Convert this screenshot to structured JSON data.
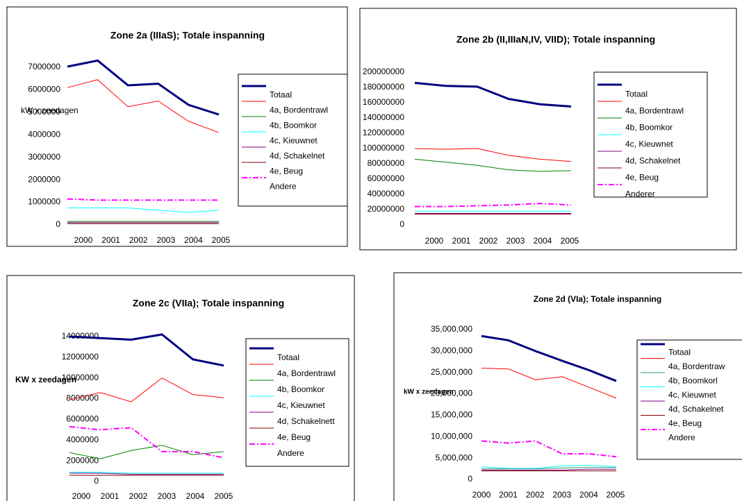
{
  "chart_data": [
    {
      "type": "line",
      "title": "Zone 2a (IIIaS); Totale inspanning",
      "ylabel": "kW x zeedagen",
      "categories": [
        "2000",
        "2001",
        "2002",
        "2003",
        "2004",
        "2005"
      ],
      "ylim": [
        0,
        7000000
      ],
      "yticks": [
        0,
        1000000,
        2000000,
        3000000,
        4000000,
        5000000,
        6000000,
        7000000
      ],
      "series": [
        {
          "name": "Totaal",
          "color": "#000080",
          "values": [
            7030000,
            7300000,
            6200000,
            6270000,
            5330000,
            4900000
          ]
        },
        {
          "name": "4a, Bordentrawl",
          "color": "#ff0000",
          "values": [
            6100000,
            6450000,
            5250000,
            5500000,
            4600000,
            4100000
          ]
        },
        {
          "name": "4b, Boomkor",
          "color": "#008000",
          "values": [
            150000,
            150000,
            150000,
            150000,
            150000,
            150000
          ]
        },
        {
          "name": "4c, Kieuwnet",
          "color": "#00ffff",
          "values": [
            750000,
            750000,
            750000,
            650000,
            550000,
            650000
          ]
        },
        {
          "name": "4d, Schakelnet",
          "color": "#800080",
          "values": [
            100000,
            100000,
            100000,
            100000,
            100000,
            100000
          ]
        },
        {
          "name": "4e, Beug",
          "color": "#800000",
          "values": [
            50000,
            50000,
            50000,
            50000,
            50000,
            50000
          ]
        },
        {
          "name": "Andere",
          "color": "#ff00ff",
          "dashed": true,
          "values": [
            1150000,
            1100000,
            1100000,
            1100000,
            1100000,
            1100000
          ]
        }
      ]
    },
    {
      "type": "line",
      "title": "Zone 2b (II,IIIaN,IV, VIID); Totale inspanning",
      "categories": [
        "2000",
        "2001",
        "2002",
        "2003",
        "2004",
        "2005"
      ],
      "ylim": [
        0,
        200000000
      ],
      "yticks": [
        0,
        20000000,
        40000000,
        60000000,
        80000000,
        100000000,
        120000000,
        140000000,
        160000000,
        180000000,
        200000000
      ],
      "series": [
        {
          "name": "Totaal",
          "color": "#000080",
          "values": [
            186000000,
            182000000,
            181000000,
            165000000,
            158000000,
            155000000
          ]
        },
        {
          "name": "4a, Bordentrawl",
          "color": "#ff0000",
          "values": [
            100000000,
            99000000,
            100000000,
            91000000,
            86000000,
            83000000
          ]
        },
        {
          "name": "4b, Boomkor",
          "color": "#008000",
          "values": [
            86000000,
            82000000,
            78000000,
            72000000,
            70000000,
            71000000
          ]
        },
        {
          "name": "4c, Kieuwnet",
          "color": "#00ffff",
          "values": [
            18000000,
            18000000,
            18000000,
            18000000,
            18000000,
            18000000
          ]
        },
        {
          "name": "4d, Schakelnet",
          "color": "#800080",
          "values": [
            15000000,
            15000000,
            15000000,
            15000000,
            15000000,
            15000000
          ]
        },
        {
          "name": "4e, Beug",
          "color": "#800000",
          "values": [
            14000000,
            14000000,
            14000000,
            14000000,
            14000000,
            14000000
          ]
        },
        {
          "name": "Anderer",
          "color": "#ff00ff",
          "dashed": true,
          "values": [
            24000000,
            24000000,
            25000000,
            26000000,
            28000000,
            26000000
          ]
        }
      ]
    },
    {
      "type": "line",
      "title": "Zone 2c (VIIa); Totale inspanning",
      "ylabel": "KW x zeedagen",
      "categories": [
        "2000",
        "2001",
        "2002",
        "2003",
        "2004",
        "2005"
      ],
      "ylim": [
        0,
        14000000
      ],
      "yticks": [
        0,
        2000000,
        4000000,
        6000000,
        8000000,
        10000000,
        12000000,
        14000000
      ],
      "series": [
        {
          "name": "Totaal",
          "color": "#000080",
          "values": [
            14000000,
            13850000,
            13700000,
            14200000,
            11800000,
            11200000
          ]
        },
        {
          "name": "4a, Bordentrawl",
          "color": "#ff0000",
          "values": [
            7900000,
            8600000,
            7700000,
            10000000,
            8400000,
            8100000
          ]
        },
        {
          "name": "4b, Boomkor",
          "color": "#008000",
          "values": [
            2800000,
            2200000,
            3000000,
            3500000,
            2600000,
            2900000
          ]
        },
        {
          "name": "4c, Kieuwnet",
          "color": "#00ffff",
          "values": [
            900000,
            900000,
            800000,
            800000,
            800000,
            800000
          ]
        },
        {
          "name": "4d, Schakelnett",
          "color": "#800080",
          "values": [
            800000,
            800000,
            700000,
            700000,
            700000,
            700000
          ]
        },
        {
          "name": "4e, Beug",
          "color": "#800000",
          "values": [
            600000,
            600000,
            600000,
            600000,
            600000,
            600000
          ]
        },
        {
          "name": "Andere",
          "color": "#ff00ff",
          "dashed": true,
          "values": [
            5300000,
            5000000,
            5200000,
            2900000,
            2900000,
            2300000
          ]
        }
      ]
    },
    {
      "type": "line",
      "title": "Zone 2d (VIa);  Totale inspanning",
      "ylabel": "kW x zeedagen",
      "categories": [
        "2000",
        "2001",
        "2002",
        "2003",
        "2004",
        "2005"
      ],
      "ylim": [
        0,
        35000000
      ],
      "yticks": [
        0,
        {
          "value": 5000000,
          "label": "5,000,000"
        },
        {
          "value": 10000000,
          "label": "10,000,000"
        },
        {
          "value": 15000000,
          "label": "15,000,000"
        },
        {
          "value": 20000000,
          "label": "20,000,000"
        },
        {
          "value": 25000000,
          "label": "25,000,000"
        },
        {
          "value": 30000000,
          "label": "30,000,000"
        },
        {
          "value": 35000000,
          "label": "35,000,000"
        }
      ],
      "series": [
        {
          "name": "Totaal",
          "color": "#000080",
          "values": [
            33500000,
            32500000,
            30000000,
            27700000,
            25500000,
            23000000
          ]
        },
        {
          "name": "4a, Bordentraw",
          "color": "#ff0000",
          "values": [
            26000000,
            25800000,
            23300000,
            24000000,
            21500000,
            19000000
          ]
        },
        {
          "name": "4b, Boomkorl",
          "color": "#339966",
          "values": [
            2500000,
            2500000,
            2500000,
            2700000,
            2800000,
            2800000
          ]
        },
        {
          "name": "4c, Kieuwnet",
          "color": "#00ffff",
          "values": [
            3000000,
            2600000,
            2600000,
            3200000,
            3300000,
            3000000
          ]
        },
        {
          "name": "4d, Schakelnet",
          "color": "#800080",
          "values": [
            2200000,
            2200000,
            2200000,
            2200000,
            2400000,
            2400000
          ]
        },
        {
          "name": "4e, Beug",
          "color": "#800000",
          "values": [
            2000000,
            2000000,
            2000000,
            2000000,
            2000000,
            2000000
          ]
        },
        {
          "name": "Andere",
          "color": "#ff00ff",
          "dashed": true,
          "values": [
            9000000,
            8500000,
            9000000,
            6000000,
            6000000,
            5300000
          ]
        }
      ]
    }
  ]
}
